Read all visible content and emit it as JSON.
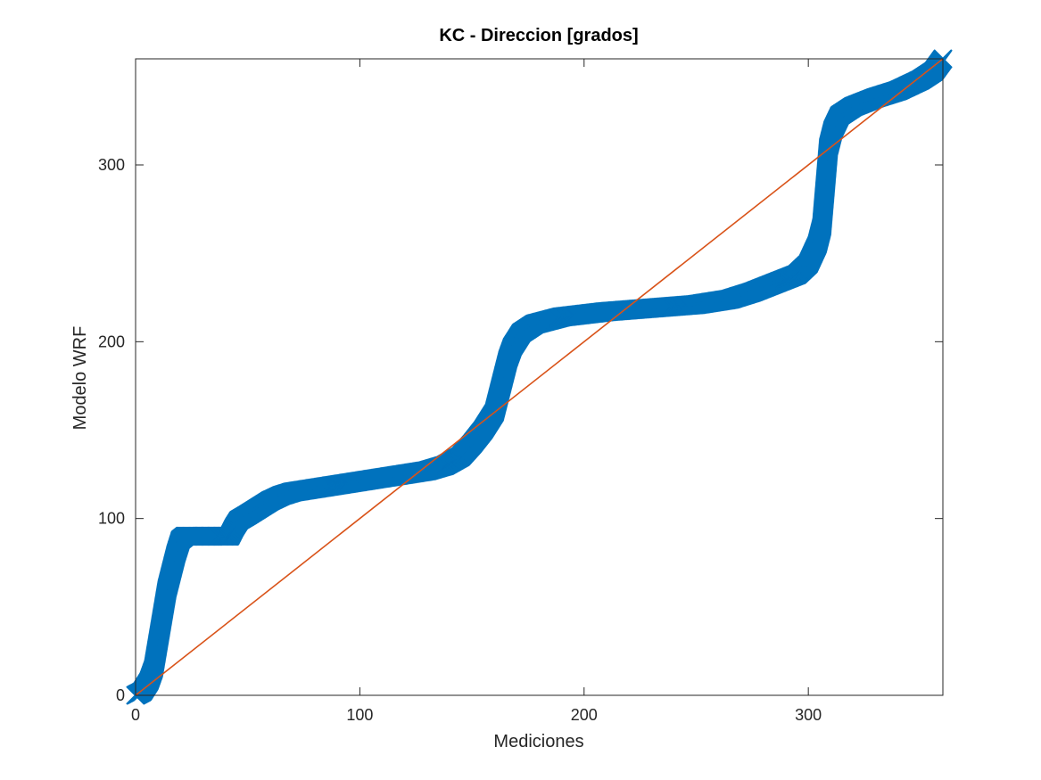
{
  "chart_data": {
    "type": "scatter",
    "title": "KC - Direccion [grados]",
    "xlabel": "Mediciones",
    "ylabel": "Modelo WRF",
    "xlim": [
      0,
      360
    ],
    "ylim": [
      0,
      360
    ],
    "xticks": [
      "0",
      "100",
      "200",
      "300"
    ],
    "yticks": [
      "0",
      "100",
      "200",
      "300"
    ],
    "grid": false,
    "legend": "none",
    "series": [
      {
        "marker": "x",
        "color": "#0072BD",
        "points": [
          [
            0,
            0
          ],
          [
            3,
            2
          ],
          [
            6,
            8
          ],
          [
            8,
            15
          ],
          [
            10,
            30
          ],
          [
            12,
            45
          ],
          [
            14,
            60
          ],
          [
            16,
            70
          ],
          [
            18,
            80
          ],
          [
            20,
            88
          ],
          [
            22,
            90
          ],
          [
            30,
            90
          ],
          [
            38,
            90
          ],
          [
            42,
            90
          ],
          [
            44,
            95
          ],
          [
            46,
            99
          ],
          [
            50,
            102
          ],
          [
            55,
            106
          ],
          [
            60,
            110
          ],
          [
            65,
            113
          ],
          [
            70,
            115
          ],
          [
            80,
            117
          ],
          [
            90,
            119
          ],
          [
            100,
            121
          ],
          [
            110,
            123
          ],
          [
            120,
            125
          ],
          [
            130,
            127
          ],
          [
            138,
            130
          ],
          [
            145,
            135
          ],
          [
            150,
            142
          ],
          [
            155,
            150
          ],
          [
            160,
            160
          ],
          [
            162,
            170
          ],
          [
            164,
            180
          ],
          [
            166,
            190
          ],
          [
            168,
            197
          ],
          [
            172,
            205
          ],
          [
            178,
            210
          ],
          [
            190,
            214
          ],
          [
            210,
            217
          ],
          [
            230,
            219
          ],
          [
            250,
            221
          ],
          [
            265,
            224
          ],
          [
            275,
            228
          ],
          [
            285,
            233
          ],
          [
            295,
            238
          ],
          [
            300,
            244
          ],
          [
            304,
            255
          ],
          [
            306,
            265
          ],
          [
            307,
            280
          ],
          [
            308,
            295
          ],
          [
            309,
            310
          ],
          [
            311,
            320
          ],
          [
            314,
            328
          ],
          [
            320,
            333
          ],
          [
            330,
            338
          ],
          [
            340,
            342
          ],
          [
            350,
            348
          ],
          [
            356,
            353
          ],
          [
            360,
            360
          ]
        ]
      },
      {
        "type": "line",
        "color": "#D95319",
        "x": [
          0,
          360
        ],
        "y": [
          0,
          360
        ]
      }
    ]
  }
}
